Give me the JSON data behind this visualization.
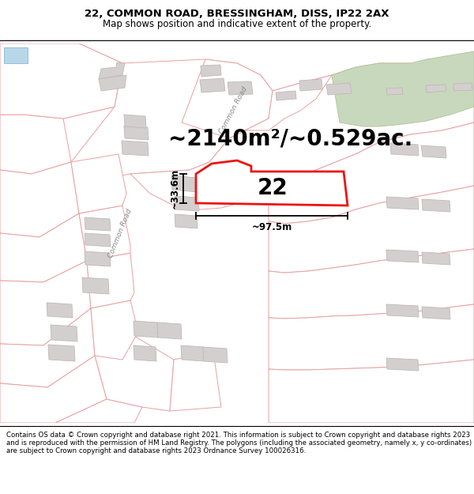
{
  "title": "22, COMMON ROAD, BRESSINGHAM, DISS, IP22 2AX",
  "subtitle": "Map shows position and indicative extent of the property.",
  "footer": "Contains OS data © Crown copyright and database right 2021. This information is subject to Crown copyright and database rights 2023 and is reproduced with the permission of HM Land Registry. The polygons (including the associated geometry, namely x, y co-ordinates) are subject to Crown copyright and database rights 2023 Ordnance Survey 100026316.",
  "area_label": "~2140m²/~0.529ac.",
  "property_number": "22",
  "width_label": "~97.5m",
  "height_label": "~33.6m",
  "map_bg": "#ffffff",
  "parcel_edge": "#e8a0a0",
  "building_fill": "#d4cfcf",
  "building_edge": "#c0b8b8",
  "highlight_color": "#ee1111",
  "highlight_fill": "#ffffff",
  "green_fill": "#c8d8bc",
  "green_edge": "#b0c8a0",
  "blue_fill": "#b8d8e8",
  "line_color": "#1a1a1a",
  "road_label_color": "#888888",
  "title_fontsize": 9.5,
  "subtitle_fontsize": 8.5,
  "footer_fontsize": 6.2,
  "area_fontsize": 20,
  "prop_num_fontsize": 20,
  "dim_fontsize": 8.5
}
